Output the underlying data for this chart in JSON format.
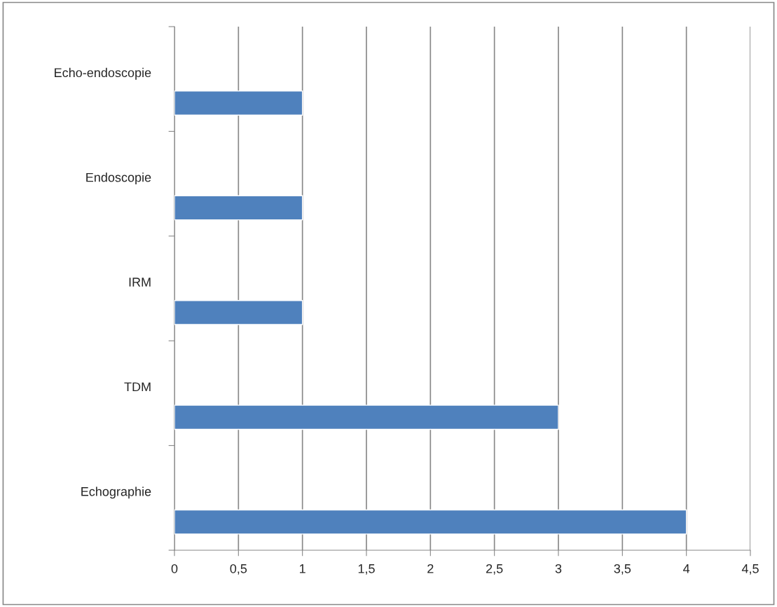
{
  "chart_data": {
    "type": "bar",
    "orientation": "horizontal",
    "categories": [
      "Echo-endoscopie",
      "Endoscopie",
      "IRM",
      "TDM",
      "Echographie"
    ],
    "values": [
      1,
      1,
      1,
      3,
      4
    ],
    "color": "#4f81bd",
    "xlim": [
      0,
      4.5
    ],
    "xticks": [
      0,
      {
        "value": 0.5,
        "label": "0,5"
      },
      1,
      {
        "value": 1.5,
        "label": "1,5"
      },
      2,
      {
        "value": 2.5,
        "label": "2,5"
      },
      3,
      {
        "value": 3.5,
        "label": "3,5"
      },
      4,
      {
        "value": 4.5,
        "label": "4,5"
      }
    ],
    "grid": "x",
    "legend": false
  }
}
